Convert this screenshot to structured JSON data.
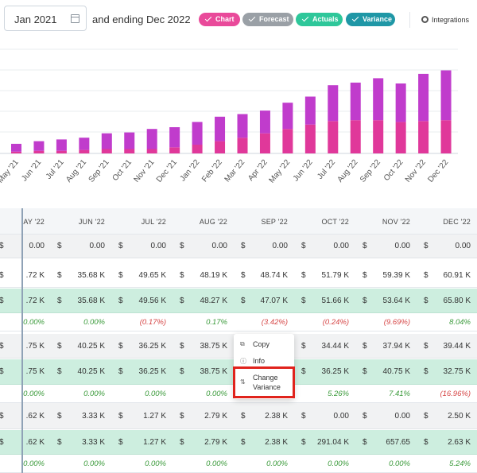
{
  "toolbar": {
    "start_date": "Jan 2021",
    "range_text": "and ending Dec 2022",
    "pills": [
      {
        "label": "Chart",
        "color": "#e94a9a"
      },
      {
        "label": "Forecast",
        "color": "#9aa0a6"
      },
      {
        "label": "Actuals",
        "color": "#2ec79a"
      },
      {
        "label": "Variance",
        "color": "#1f97a6"
      }
    ],
    "integrations_label": "Integrations"
  },
  "chart_data": {
    "type": "bar",
    "categories": [
      "May '21",
      "Jun '21",
      "Jul '21",
      "Aug '21",
      "Sep '21",
      "Oct '21",
      "Nov '21",
      "Dec '21",
      "Jan '22",
      "Feb '22",
      "Mar '22",
      "Apr '22",
      "May '22",
      "Jun '22",
      "Jul '22",
      "Aug '22",
      "Sep '22",
      "Oct '22",
      "Nov '22",
      "Dec '22"
    ],
    "series": [
      {
        "color": "#e0389a",
        "values": [
          2,
          3,
          3,
          4,
          5,
          5,
          5,
          7,
          10,
          14,
          18,
          23,
          28,
          33,
          37,
          38,
          38,
          36,
          37,
          38
        ]
      },
      {
        "color": "#c03ccc",
        "values": [
          9,
          11,
          13,
          14,
          18,
          19,
          23,
          23,
          26,
          28,
          27,
          26,
          30,
          32,
          41,
          43,
          48,
          44,
          54,
          57
        ]
      }
    ],
    "colors": {
      "stack_bottom": "#e0389a",
      "stack_top": "#c03ccc",
      "grid": "#e8ecef"
    }
  },
  "table": {
    "columns": [
      "AY '22",
      "JUN '22",
      "JUL '22",
      "AUG '22",
      "SEP '22",
      "OCT '22",
      "NOV '22",
      "DEC '22"
    ],
    "currency": "$",
    "sections": [
      {
        "rows": [
          {
            "style": "grey",
            "values": [
              "0.00",
              "0.00",
              "0.00",
              "0.00",
              "0.00",
              "0.00",
              "0.00",
              "0.00"
            ]
          }
        ]
      },
      {
        "rows": [
          {
            "style": "white",
            "values": [
              ".72 K",
              "35.68 K",
              "49.65 K",
              "48.19 K",
              "48.74 K",
              "51.79 K",
              "59.39 K",
              "60.91 K"
            ]
          },
          {
            "style": "green",
            "values": [
              ".72 K",
              "35.68 K",
              "49.56 K",
              "48.27 K",
              "47.07 K",
              "51.66 K",
              "53.64 K",
              "65.80 K"
            ]
          },
          {
            "style": "pct",
            "values": [
              "0.00%",
              "0.00%",
              "(0.17%)",
              "0.17%",
              "(3.42%)",
              "(0.24%)",
              "(9.69%)",
              "8.04%"
            ]
          }
        ]
      },
      {
        "rows": [
          {
            "style": "grey",
            "values": [
              ".75 K",
              "40.25 K",
              "36.25 K",
              "38.75 K",
              "",
              "34.44 K",
              "37.94 K",
              "39.44 K"
            ]
          },
          {
            "style": "green",
            "values": [
              ".75 K",
              "40.25 K",
              "36.25 K",
              "38.75 K",
              "",
              "36.25 K",
              "40.75 K",
              "32.75 K"
            ]
          },
          {
            "style": "pct",
            "values": [
              "0.00%",
              "0.00%",
              "0.00%",
              "0.00%",
              "",
              "5.26%",
              "7.41%",
              "(16.96%)"
            ]
          }
        ]
      },
      {
        "rows": [
          {
            "style": "grey",
            "values": [
              ".62 K",
              "3.33 K",
              "1.27 K",
              "2.79 K",
              "2.38 K",
              "0.00",
              "0.00",
              "2.50 K"
            ]
          },
          {
            "style": "green",
            "values": [
              ".62 K",
              "3.33 K",
              "1.27 K",
              "2.79 K",
              "2.38 K",
              "291.04 K",
              "657.65",
              "2.63 K"
            ]
          },
          {
            "style": "pct",
            "values": [
              "0.00%",
              "0.00%",
              "0.00%",
              "0.00%",
              "0.00%",
              "0.00%",
              "0.00%",
              "5.24%"
            ]
          }
        ]
      }
    ]
  },
  "context_menu": {
    "items": [
      {
        "label": "Copy",
        "icon": "copy-icon"
      },
      {
        "label": "Info",
        "icon": "info-icon"
      },
      {
        "label": "Change Variance",
        "icon": "swap-icon"
      }
    ]
  }
}
